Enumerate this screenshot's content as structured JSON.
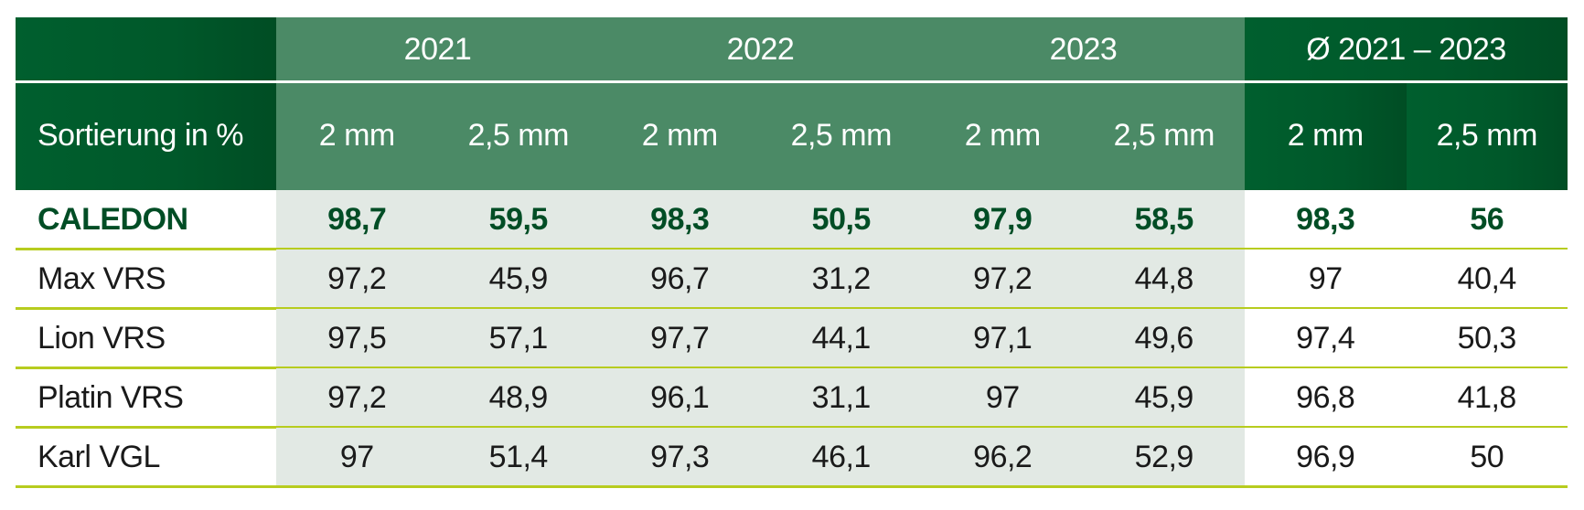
{
  "table": {
    "corner_label": "Sortierung in %",
    "groups": [
      "2021",
      "2022",
      "2023",
      "Ø 2021 – 2023"
    ],
    "subcolumns": [
      "2 mm",
      "2,5 mm",
      "2 mm",
      "2,5 mm",
      "2 mm",
      "2,5 mm",
      "2 mm",
      "2,5 mm"
    ],
    "rows": [
      {
        "name": "CALEDON",
        "values": [
          "98,7",
          "59,5",
          "98,3",
          "50,5",
          "97,9",
          "58,5",
          "98,3",
          "56"
        ]
      },
      {
        "name": "Max VRS",
        "values": [
          "97,2",
          "45,9",
          "96,7",
          "31,2",
          "97,2",
          "44,8",
          "97",
          "40,4"
        ]
      },
      {
        "name": "Lion VRS",
        "values": [
          "97,5",
          "57,1",
          "97,7",
          "44,1",
          "97,1",
          "49,6",
          "97,4",
          "50,3"
        ]
      },
      {
        "name": "Platin VRS",
        "values": [
          "97,2",
          "48,9",
          "96,1",
          "31,1",
          "97",
          "45,9",
          "96,8",
          "41,8"
        ]
      },
      {
        "name": "Karl VGL",
        "values": [
          "97",
          "51,4",
          "97,3",
          "46,1",
          "96,2",
          "52,9",
          "96,9",
          "50"
        ]
      }
    ]
  }
}
